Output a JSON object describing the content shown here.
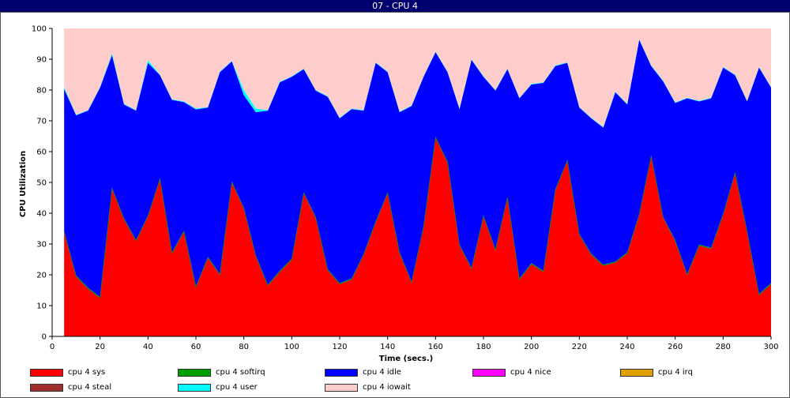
{
  "window": {
    "title": "07 - CPU 4"
  },
  "chart_data": {
    "type": "area",
    "stacked": true,
    "title": "07 - CPU 4",
    "xlabel": "Time (secs.)",
    "ylabel": "CPU Utilization",
    "xlim": [
      0,
      300
    ],
    "ylim": [
      0,
      100
    ],
    "x_ticks": [
      0,
      20,
      40,
      60,
      80,
      100,
      120,
      140,
      160,
      180,
      200,
      220,
      240,
      260,
      280,
      300
    ],
    "y_ticks": [
      0,
      10,
      20,
      30,
      40,
      50,
      60,
      70,
      80,
      90,
      100
    ],
    "grid": false,
    "legend_position": "bottom",
    "x": [
      5,
      10,
      15,
      20,
      25,
      30,
      35,
      40,
      45,
      50,
      55,
      60,
      65,
      70,
      75,
      80,
      85,
      90,
      95,
      100,
      105,
      110,
      115,
      120,
      125,
      130,
      135,
      140,
      145,
      150,
      155,
      160,
      165,
      170,
      175,
      180,
      185,
      190,
      195,
      200,
      205,
      210,
      215,
      220,
      225,
      230,
      235,
      240,
      245,
      250,
      255,
      260,
      265,
      270,
      275,
      280,
      285,
      290,
      295,
      300
    ],
    "series": [
      {
        "name": "cpu 4 sys",
        "color": "#ff0000",
        "values": [
          34,
          19.5,
          15.5,
          12.5,
          48,
          38,
          31,
          39,
          51,
          27,
          34,
          16,
          25.5,
          20,
          50,
          41.5,
          26,
          16.5,
          21,
          25,
          46.5,
          38.5,
          21.5,
          17,
          18.5,
          26.5,
          37,
          46.5,
          27,
          17.5,
          35.5,
          64.5,
          56.5,
          29.5,
          22,
          39,
          28,
          45,
          18.5,
          23.5,
          21,
          47.5,
          57,
          33,
          26.5,
          23,
          24,
          27,
          39.5,
          58.5,
          38.5,
          31,
          20,
          29.5,
          28.5,
          39.5,
          53,
          34,
          13.5,
          17
        ]
      },
      {
        "name": "cpu 4 softirq",
        "color": "#00a000",
        "values": [
          0.3,
          0.3,
          0.3,
          0.3,
          0.3,
          0.3,
          0.3,
          0.3,
          0.3,
          0.3,
          0.3,
          0.3,
          0.3,
          0.3,
          0.3,
          0.3,
          0.3,
          0.3,
          0.3,
          0.3,
          0.3,
          0.3,
          0.3,
          0.3,
          0.3,
          0.3,
          0.3,
          0.3,
          0.3,
          0.3,
          0.3,
          0.3,
          0.3,
          0.3,
          0.3,
          0.3,
          0.3,
          0.3,
          0.3,
          0.3,
          0.3,
          0.3,
          0.3,
          0.3,
          0.3,
          0.3,
          0.3,
          0.3,
          0.3,
          0.3,
          0.3,
          0.3,
          0.3,
          0.3,
          0.3,
          0.3,
          0.3,
          0.3,
          0.3,
          0.3
        ]
      },
      {
        "name": "cpu 4 idle",
        "color": "#0000ff",
        "values": [
          46,
          52,
          57.5,
          68,
          43,
          37,
          42,
          49.5,
          33.5,
          49.5,
          41.8,
          57.4,
          48.5,
          65.5,
          39,
          36.5,
          46.5,
          56.5,
          61.2,
          59,
          40,
          41,
          56,
          53.5,
          55,
          46.5,
          51.5,
          39,
          45.5,
          57,
          48.5,
          27.5,
          29,
          44,
          67.5,
          45,
          51.5,
          41.5,
          58.5,
          58,
          61,
          40,
          31.5,
          41,
          44,
          44.5,
          55,
          48,
          56.5,
          29,
          44,
          44.5,
          57,
          46.5,
          48.5,
          47.5,
          31.5,
          42,
          73.5,
          63.5
        ]
      },
      {
        "name": "cpu 4 nice",
        "color": "#ff00ff",
        "values": [
          0,
          0,
          0,
          0,
          0,
          0,
          0,
          0,
          0,
          0,
          0,
          0,
          0,
          0,
          0,
          0,
          0,
          0,
          0,
          0,
          0,
          0,
          0,
          0,
          0,
          0,
          0,
          0,
          0,
          0,
          0,
          0,
          0,
          0,
          0,
          0,
          0,
          0,
          0,
          0,
          0,
          0,
          0,
          0,
          0,
          0,
          0,
          0,
          0,
          0,
          0,
          0,
          0,
          0,
          0,
          0,
          0,
          0,
          0,
          0
        ]
      },
      {
        "name": "cpu 4 irq",
        "color": "#e0a000",
        "values": [
          0,
          0,
          0,
          0,
          0,
          0,
          0,
          0,
          0,
          0,
          0,
          0,
          0,
          0,
          0,
          0,
          0,
          0,
          0,
          0,
          0,
          0,
          0,
          0,
          0,
          0,
          0,
          0,
          0,
          0,
          0,
          0,
          0,
          0,
          0,
          0,
          0,
          0,
          0,
          0,
          0,
          0,
          0,
          0,
          0,
          0,
          0,
          0,
          0,
          0,
          0,
          0,
          0,
          0,
          0,
          0,
          0,
          0,
          0,
          0
        ]
      },
      {
        "name": "cpu 4 steal",
        "color": "#a03030",
        "values": [
          0,
          0,
          0,
          0,
          0,
          0,
          0,
          0,
          0,
          0,
          0,
          0,
          0,
          0,
          0,
          0,
          0,
          0,
          0,
          0,
          0,
          0,
          0,
          0,
          0,
          0,
          0,
          0,
          0,
          0,
          0,
          0,
          0,
          0,
          0,
          0,
          0,
          0,
          0,
          0,
          0,
          0,
          0,
          0,
          0,
          0,
          0,
          0,
          0,
          0,
          0,
          0,
          0,
          0,
          0,
          0,
          0,
          0,
          0,
          0
        ]
      },
      {
        "name": "cpu 4 user",
        "color": "#00ffff",
        "values": [
          0.7,
          0.2,
          0.2,
          0.2,
          0.7,
          0.2,
          0.2,
          0.9,
          0.2,
          0.2,
          0.2,
          0.3,
          0.2,
          0.2,
          0.2,
          1.7,
          1.2,
          0.2,
          0.2,
          0.2,
          0.2,
          0.2,
          0.2,
          0.2,
          0.2,
          0.2,
          0.2,
          0.2,
          0.2,
          0.2,
          0.2,
          0.2,
          0.2,
          0.2,
          0.2,
          0.2,
          0.2,
          0.2,
          0.2,
          0.2,
          0.2,
          0.2,
          0.2,
          0.2,
          0.2,
          0.2,
          0.2,
          0.2,
          0.2,
          0.2,
          0.2,
          0.2,
          0.2,
          0.2,
          0.2,
          0.2,
          0.2,
          0.2,
          0.2,
          0.2
        ]
      },
      {
        "name": "cpu 4 iowait",
        "color": "#ffcccc",
        "values": [
          19,
          28,
          26.5,
          19,
          8,
          24.5,
          26.5,
          10.3,
          15,
          23,
          23.7,
          26,
          25.5,
          14,
          10.5,
          20,
          26,
          26.5,
          17.3,
          15.5,
          13,
          20,
          22,
          29,
          26,
          26.5,
          11,
          14,
          27,
          25,
          15.5,
          7.5,
          14,
          26,
          10,
          15.5,
          20,
          13,
          22.5,
          18,
          17.5,
          12,
          11,
          25.5,
          29,
          32,
          20.5,
          24.5,
          3.5,
          12,
          17,
          24,
          22.5,
          23.5,
          22.5,
          12.5,
          15,
          23.5,
          12.5,
          19
        ]
      }
    ]
  }
}
